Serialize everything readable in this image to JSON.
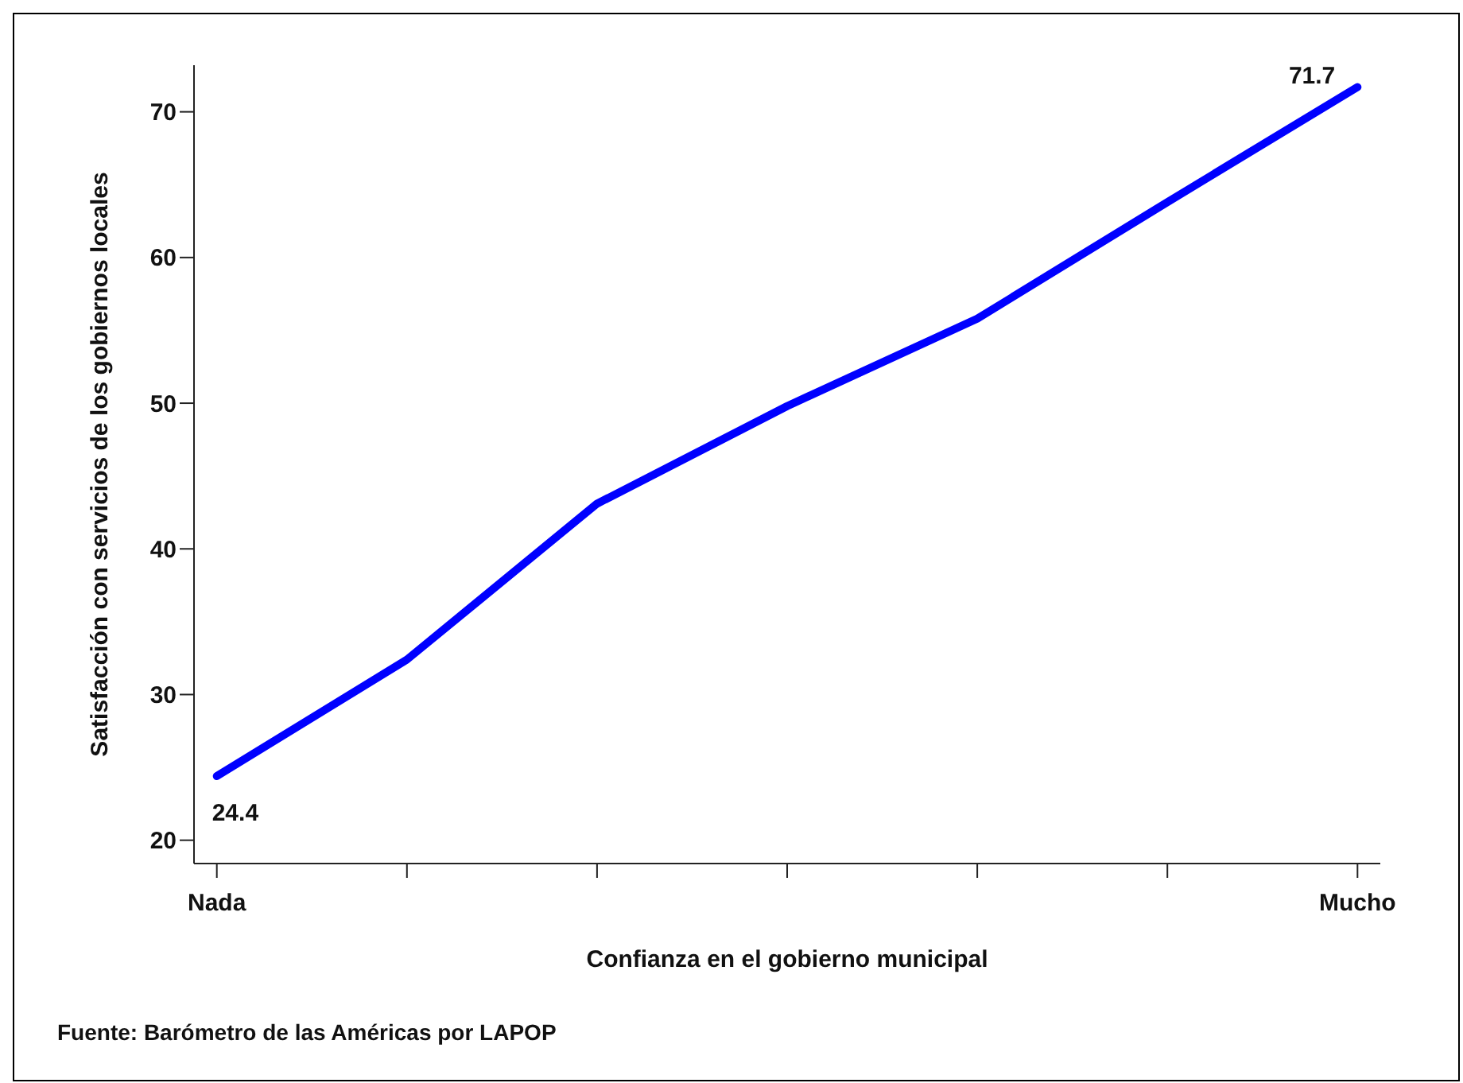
{
  "chart_data": {
    "type": "line",
    "xlabel": "Confianza en el gobierno municipal",
    "ylabel": "Satisfacción con servicios de los gobiernos locales",
    "annotations": [
      "Fuente: Barómetro de las Américas por LAPOP"
    ],
    "categories": [
      "Nada",
      null,
      null,
      null,
      null,
      null,
      "Mucho"
    ],
    "series": [
      {
        "color": "#0000ff",
        "values": [
          24.4,
          32.4,
          43.1,
          49.8,
          55.8,
          63.8,
          71.7
        ],
        "value_labels": [
          "24.4",
          null,
          null,
          null,
          null,
          null,
          "71.7"
        ]
      }
    ],
    "ylim": [
      18.4,
      73.2
    ],
    "yticks": [
      20,
      30,
      40,
      50,
      60,
      70
    ],
    "grid": false,
    "legend": false,
    "marker": "none",
    "line_style": "solid"
  }
}
